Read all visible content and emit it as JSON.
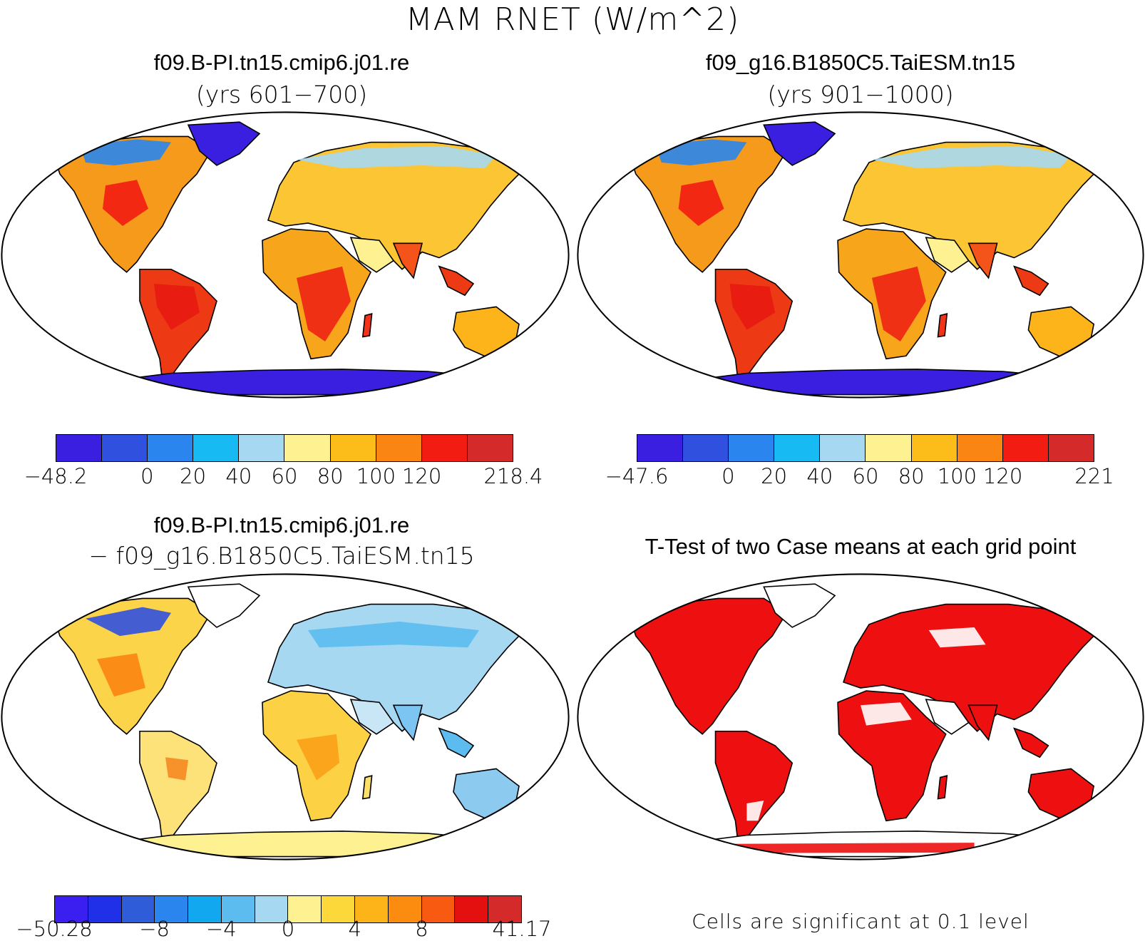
{
  "figure": {
    "main_title": "MAM RNET (W/m^2)"
  },
  "panels": [
    {
      "id": "case1",
      "title": "f09.B-PI.tn15.cmip6.j01.re",
      "subtitle": "(yrs 601−700)",
      "colorbar": {
        "colors": [
          "#3b1fe0",
          "#3050e0",
          "#2a86ee",
          "#18baf4",
          "#a6d8f2",
          "#fdf192",
          "#fcbd1a",
          "#fb8512",
          "#f21c12",
          "#d42a2a"
        ],
        "labels": [
          "−48.2",
          "0",
          "20",
          "40",
          "60",
          "80",
          "100",
          "120",
          "218.4"
        ],
        "label_boundaries": [
          0,
          2,
          3,
          4,
          5,
          6,
          7,
          8,
          10
        ]
      }
    },
    {
      "id": "case2",
      "title": "f09_g16.B1850C5.TaiESM.tn15",
      "subtitle": "(yrs 901−1000)",
      "colorbar": {
        "colors": [
          "#3b1fe0",
          "#3050e0",
          "#2a86ee",
          "#18baf4",
          "#a6d8f2",
          "#fdf192",
          "#fcbd1a",
          "#fb8512",
          "#f21c12",
          "#d42a2a"
        ],
        "labels": [
          "−47.6",
          "0",
          "20",
          "40",
          "60",
          "80",
          "100",
          "120",
          "221"
        ],
        "label_boundaries": [
          0,
          2,
          3,
          4,
          5,
          6,
          7,
          8,
          10
        ]
      }
    },
    {
      "id": "difference",
      "title": "f09.B-PI.tn15.cmip6.j01.re",
      "subtitle": "− f09_g16.B1850C5.TaiESM.tn15",
      "colorbar": {
        "colors": [
          "#3a1ff0",
          "#2030e8",
          "#2f5cd8",
          "#2a86ee",
          "#12a8f0",
          "#5cbcf0",
          "#a6d8f2",
          "#fdf192",
          "#fcd83a",
          "#fcb418",
          "#fb8c10",
          "#f75a10",
          "#e41010",
          "#d42a2a"
        ],
        "labels": [
          "−50.28",
          "−8",
          "−4",
          "0",
          "4",
          "8",
          "41.17"
        ],
        "label_boundaries": [
          0,
          3,
          5,
          7,
          9,
          11,
          14
        ]
      }
    },
    {
      "id": "ttest",
      "title": "T-Test of two Case means at each grid point",
      "note": "Cells are significant at 0.1 level"
    }
  ]
}
